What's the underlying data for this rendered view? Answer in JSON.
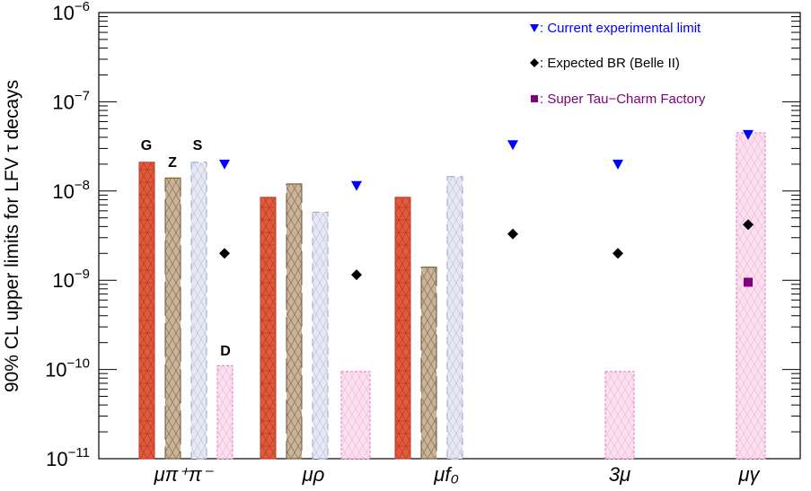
{
  "chart_data": {
    "type": "bar",
    "ylabel": "90% CL upper limits for LFV τ decays",
    "yscale": "log",
    "ylim": [
      1e-11,
      1e-06
    ],
    "y_ticks": [
      {
        "value": 1e-06,
        "base": "10",
        "exp": "−6"
      },
      {
        "value": 1e-07,
        "base": "10",
        "exp": "−7"
      },
      {
        "value": 1e-08,
        "base": "10",
        "exp": "−8"
      },
      {
        "value": 1e-09,
        "base": "10",
        "exp": "−9"
      },
      {
        "value": 1e-10,
        "base": "10",
        "exp": "−10"
      },
      {
        "value": 1e-11,
        "base": "10",
        "exp": "−11"
      }
    ],
    "categories": [
      "μπ⁺π⁻",
      "μρ",
      "μf₀",
      "3μ",
      "μγ"
    ],
    "model_labels": [
      "G",
      "Z",
      "S",
      "D"
    ],
    "bar_series": [
      {
        "model": "G",
        "color": "#e05a3c",
        "values": [
          2.1e-08,
          8.5e-09,
          8.5e-09,
          null,
          null
        ]
      },
      {
        "model": "Z",
        "color": "#c9b49a",
        "values": [
          1.4e-08,
          1.2e-08,
          1.4e-09,
          null,
          null
        ]
      },
      {
        "model": "S",
        "color": "#e6e8f3",
        "values": [
          2.1e-08,
          5.8e-09,
          1.45e-08,
          null,
          null
        ]
      },
      {
        "model": "D",
        "color": "#fbe0f0",
        "values": [
          1.1e-10,
          9.5e-11,
          null,
          9.5e-11,
          4.5e-08
        ]
      }
    ],
    "series": [
      {
        "name": "Current experimental limit",
        "marker": "triangle-down",
        "color": "#0000ff",
        "values": [
          2e-08,
          1.15e-08,
          3.3e-08,
          2e-08,
          4.3e-08
        ]
      },
      {
        "name": "Expected BR (Belle II)",
        "marker": "diamond",
        "color": "#000000",
        "values": [
          2e-09,
          1.15e-09,
          3.3e-09,
          2e-09,
          4.2e-09
        ]
      },
      {
        "name": "Super Tau−Charm Factory",
        "marker": "square",
        "color": "#800080",
        "values": [
          null,
          null,
          null,
          null,
          9.5e-10
        ]
      }
    ],
    "legend": [
      {
        "text": ": Current experimental limit",
        "color": "#0000ff"
      },
      {
        "text": ": Expected BR (Belle II)",
        "color": "#000000"
      },
      {
        "text": ": Super Tau−Charm Factory",
        "color": "#800080"
      }
    ],
    "legend_position": "top-right",
    "grid": false
  }
}
